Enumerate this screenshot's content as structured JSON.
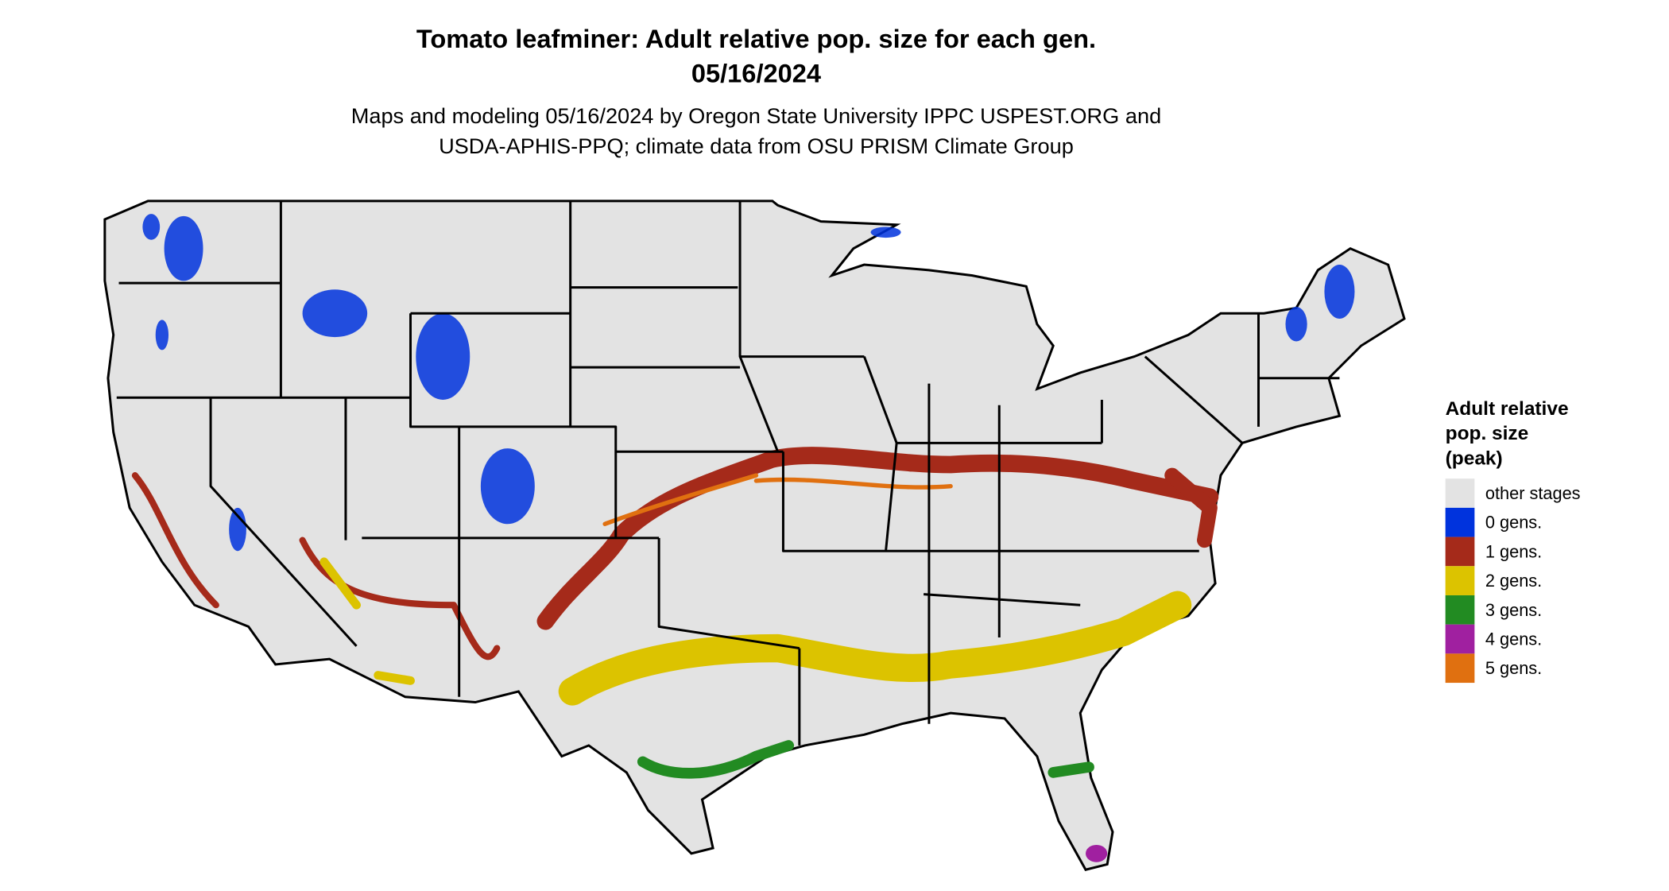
{
  "title": [
    "Tomato leafminer: Adult relative pop. size for each gen.",
    "05/16/2024"
  ],
  "subtitle": [
    "Maps and modeling 05/16/2024 by Oregon State University IPPC USPEST.ORG and",
    "USDA-APHIS-PPQ; climate data from OSU PRISM Climate Group"
  ],
  "legend": {
    "title": [
      "Adult relative",
      "pop. size",
      "(peak)"
    ],
    "items": [
      {
        "label": "other stages",
        "color": "#e3e3e3"
      },
      {
        "label": "0 gens.",
        "color": "#0033dd"
      },
      {
        "label": "1 gens.",
        "color": "#a52a1a"
      },
      {
        "label": "2 gens.",
        "color": "#dcc300"
      },
      {
        "label": "3 gens.",
        "color": "#228b22"
      },
      {
        "label": "4 gens.",
        "color": "#a020a0"
      },
      {
        "label": "5 gens.",
        "color": "#e07010"
      }
    ]
  }
}
